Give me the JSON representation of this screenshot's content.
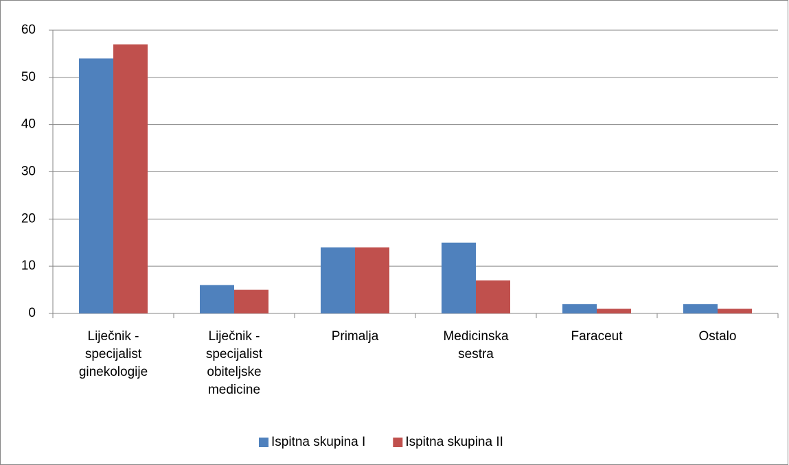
{
  "chart_data": {
    "type": "bar",
    "categories": [
      "Liječnik - specijalist ginekologije",
      "Liječnik - specijalist obiteljske medicine",
      "Primalja",
      "Medicinska sestra",
      "Faraceut",
      "Ostalo"
    ],
    "series": [
      {
        "name": "Ispitna skupina I",
        "color": "#4f81bd",
        "values": [
          54,
          6,
          14,
          15,
          2,
          2
        ]
      },
      {
        "name": "Ispitna skupina II",
        "color": "#c0504d",
        "values": [
          57,
          5,
          14,
          7,
          1,
          1
        ]
      }
    ],
    "ylim": [
      0,
      60
    ],
    "yticks": [
      0,
      10,
      20,
      30,
      40,
      50,
      60
    ],
    "grid": true,
    "legend": "bottom"
  }
}
